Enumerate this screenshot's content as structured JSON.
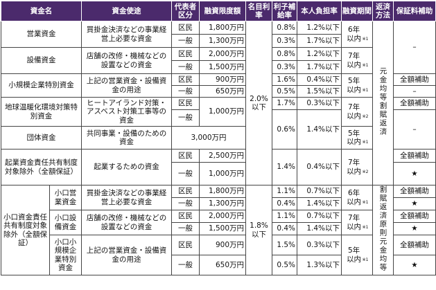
{
  "header": [
    "資金名",
    "資金使途",
    "代表者区分",
    "融資限度額",
    "名目利率",
    "利子補給率",
    "本人負担率",
    "融資期間",
    "返済方法",
    "保証料補助"
  ],
  "rate": "2.0%以下",
  "repay": "元金均等割賦返済",
  "funds": [
    {
      "name": "営業資金",
      "use": "買掛金決済などの事業経営上必要な資金",
      "period": "6年以内",
      "note": "※1",
      "guarantee": "–",
      "rows": [
        {
          "type": "区民",
          "limit": "1,800万円",
          "subsidy": "0.8%",
          "burden": "1.2%以下"
        },
        {
          "type": "一般",
          "limit": "1,300万円",
          "subsidy": "0.3%",
          "burden": "1.7%以下"
        }
      ]
    },
    {
      "name": "設備資金",
      "use": "店舗の改修・機械などの設置などの資金",
      "period": "7年以内",
      "note": "※1",
      "rows": [
        {
          "type": "区民",
          "limit": "2,000万円",
          "subsidy": "0.8%",
          "burden": "1.2%以下"
        },
        {
          "type": "一般",
          "limit": "1,500万円",
          "subsidy": "0.3%",
          "burden": "1.7%以下"
        }
      ]
    },
    {
      "name": "小規模企業特別資金",
      "use": "上記の営業資金・設備資金の用途",
      "period": "5年以内",
      "note": "※1",
      "rows": [
        {
          "type": "区民",
          "limit": "900万円",
          "subsidy": "1.6%",
          "burden": "0.4%以下",
          "guarantee": "全額補助"
        },
        {
          "type": "一般",
          "limit": "650万円",
          "subsidy": "0.5%",
          "burden": "1.5%以下",
          "guarantee": "–"
        }
      ]
    },
    {
      "name": "地球温暖化環境対策特別資金",
      "use": "ヒートアイランド対策・アスベスト対策工事等の資金",
      "limit": "1,000万円",
      "period": "7年以内",
      "note": "※2",
      "rows": [
        {
          "type": "区民",
          "subsidy": "1.7%",
          "burden": "0.3%以下",
          "guarantee": "全額補助"
        },
        {
          "type": "一般"
        }
      ]
    },
    {
      "name": "団体資金",
      "use": "共同事業・設備のための資金",
      "limit": "3,000万円",
      "period": "5年以内",
      "note": "※1",
      "subsidy": "0.6%",
      "burden": "1.4%以下",
      "guarantee": "–"
    },
    {
      "name": "起業資金責任共有制度対象除外（全額保証）",
      "use": "起業するための資金",
      "subsidy": "1.4%",
      "burden": "0.4%以下",
      "period": "7年以内",
      "note": "※2",
      "rows": [
        {
          "type": "区民",
          "limit": "2,500万円",
          "guarantee": "全額補助"
        },
        {
          "type": "一般",
          "limit": "1,000万円",
          "guarantee": "★"
        }
      ]
    }
  ],
  "small": {
    "name": "小口資金責任共有制度対象除外（全額保証）",
    "rate": "1.8%以下",
    "repay": "割賦返済原則元金均等",
    "funds": [
      {
        "name": "小口営業資金",
        "use": "買掛金決済などの事業経営上必要な資金",
        "period": "6年以内",
        "note": "※1",
        "rows": [
          {
            "type": "区民",
            "limit": "1,800万円",
            "subsidy": "1.1%",
            "burden": "0.7%以下",
            "guarantee": "全額補助"
          },
          {
            "type": "一般",
            "limit": "1,300万円",
            "subsidy": "0.4%",
            "burden": "1.4%以下",
            "guarantee": "★"
          }
        ]
      },
      {
        "name": "小口設備資金",
        "use": "店舗の改修・機械などの設置などの資金",
        "period": "7年以内",
        "note": "※1",
        "rows": [
          {
            "type": "区民",
            "limit": "2,000万円",
            "subsidy": "1.1%",
            "burden": "0.7%以下",
            "guarantee": "全額補助"
          },
          {
            "type": "一般",
            "limit": "1,500万円",
            "subsidy": "0.4%",
            "burden": "1.4%以下",
            "guarantee": "★"
          }
        ]
      },
      {
        "name": "小口小規模企業特別資金",
        "use": "上記の営業資金・設備資金の用途",
        "period": "5年以内",
        "note": "※1",
        "rows": [
          {
            "type": "区民",
            "limit": "900万円",
            "subsidy": "1.5%",
            "burden": "0.3%以下",
            "guarantee": "全額補助"
          },
          {
            "type": "一般",
            "limit": "650万円",
            "subsidy": "0.5%",
            "burden": "1.3%以下",
            "guarantee": "★"
          }
        ]
      }
    ]
  }
}
